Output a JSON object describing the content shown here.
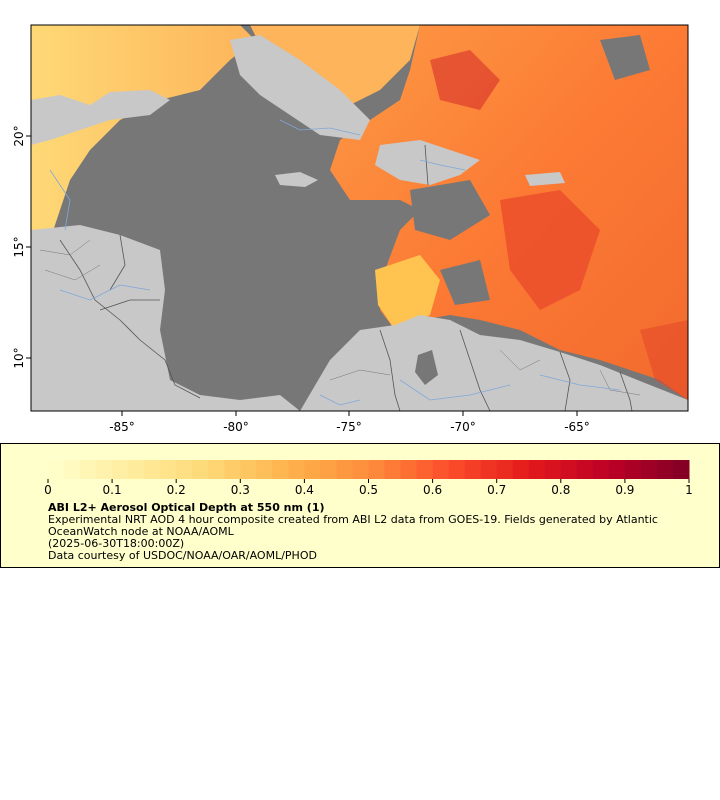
{
  "map": {
    "lon_ticks": [
      "-85°",
      "-80°",
      "-75°",
      "-70°",
      "-65°"
    ],
    "lat_ticks": [
      "20°",
      "15°",
      "10°"
    ],
    "colors": {
      "ocean_no_data": "#777777",
      "land": "#c8c8c8",
      "borders": "#555555",
      "rivers": "#7fa8d8",
      "frame": "#000000"
    }
  },
  "legend": {
    "title": "ABI L2+ Aerosol Optical Depth at 550 nm (1)",
    "ticks": [
      "0",
      "0.1",
      "0.2",
      "0.3",
      "0.4",
      "0.5",
      "0.6",
      "0.7",
      "0.8",
      "0.9",
      "1"
    ],
    "min": 0,
    "max": 1,
    "line1": "Experimental NRT AOD 4 hour composite created from ABI L2 data from GOES-19. Fields generated by Atlantic",
    "line2": "OceanWatch node at NOAA/AOML",
    "line3": "(2025-06-30T18:00:00Z)",
    "line4": "Data courtesy of USDOC/NOAA/OAR/AOML/PHOD",
    "colormap": [
      "#ffffcc",
      "#ffeda0",
      "#fed976",
      "#feb24c",
      "#fd8d3c",
      "#fc4e2a",
      "#e31a1c",
      "#bd0026",
      "#800026"
    ]
  }
}
